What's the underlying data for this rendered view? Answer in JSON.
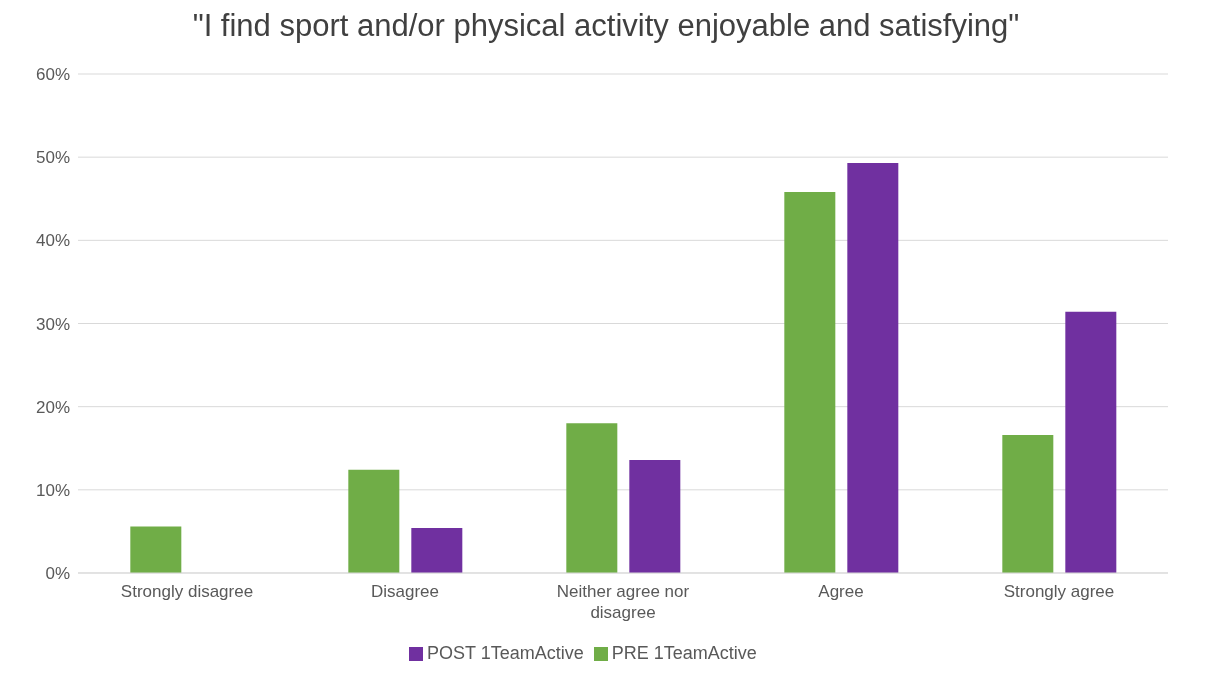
{
  "chart_data": {
    "type": "bar",
    "title": "\"I find sport and/or physical activity enjoyable and satisfying\"",
    "categories": [
      "Strongly disagree",
      "Disagree",
      "Neither agree nor disagree",
      "Agree",
      "Strongly agree"
    ],
    "series": [
      {
        "name": "PRE 1TeamActive",
        "color": "#70ad47",
        "values": [
          5.6,
          12.4,
          18.0,
          45.8,
          16.6
        ]
      },
      {
        "name": "POST 1TeamActive",
        "color": "#7030a0",
        "values": [
          0,
          5.4,
          13.6,
          49.3,
          31.4
        ]
      }
    ],
    "ylim": [
      0,
      60
    ],
    "yticks": [
      {
        "value": 0,
        "label": "0%"
      },
      {
        "value": 10,
        "label": "10%"
      },
      {
        "value": 20,
        "label": "20%"
      },
      {
        "value": 30,
        "label": "30%"
      },
      {
        "value": 40,
        "label": "40%"
      },
      {
        "value": 50,
        "label": "50%"
      },
      {
        "value": 60,
        "label": "60%"
      }
    ],
    "grid": "y",
    "legend": "bottom"
  }
}
